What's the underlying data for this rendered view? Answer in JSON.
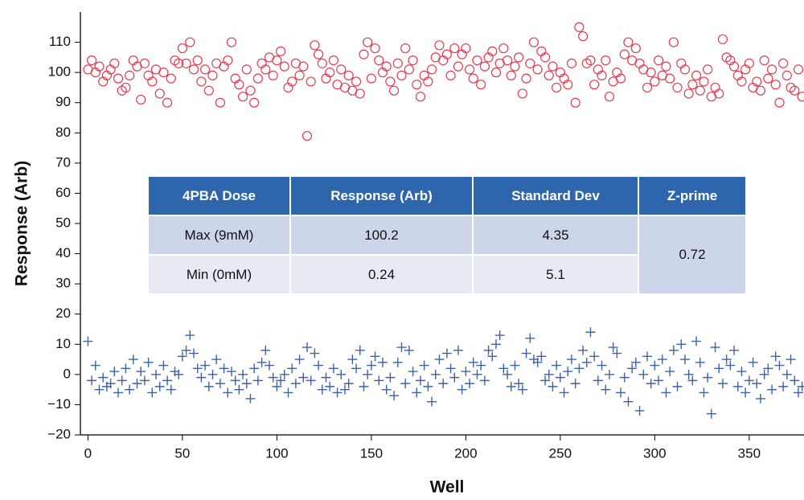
{
  "chart_data": {
    "type": "scatter",
    "xlabel": "Well",
    "ylabel": "Response (Arb)",
    "xlim": [
      -4,
      379
    ],
    "ylim": [
      -20,
      120
    ],
    "xticks": [
      0,
      50,
      100,
      150,
      200,
      250,
      300,
      350
    ],
    "yticks": [
      {
        "value": -20,
        "label": "−20"
      },
      {
        "value": -10,
        "label": "−10"
      },
      0,
      10,
      20,
      30,
      40,
      50,
      60,
      70,
      80,
      90,
      100,
      110
    ],
    "x": [
      0,
      2,
      4,
      6,
      8,
      10,
      12,
      14,
      16,
      18,
      20,
      22,
      24,
      26,
      28,
      30,
      32,
      34,
      36,
      38,
      40,
      42,
      44,
      46,
      48,
      50,
      52,
      54,
      56,
      58,
      60,
      62,
      64,
      66,
      68,
      70,
      72,
      74,
      76,
      78,
      80,
      82,
      84,
      86,
      88,
      90,
      92,
      94,
      96,
      98,
      100,
      102,
      104,
      106,
      108,
      110,
      112,
      114,
      116,
      118,
      120,
      122,
      124,
      126,
      128,
      130,
      132,
      134,
      136,
      138,
      140,
      142,
      144,
      146,
      148,
      150,
      152,
      154,
      156,
      158,
      160,
      162,
      164,
      166,
      168,
      170,
      172,
      174,
      176,
      178,
      180,
      182,
      184,
      186,
      188,
      190,
      192,
      194,
      196,
      198,
      200,
      202,
      204,
      206,
      208,
      210,
      212,
      214,
      216,
      218,
      220,
      222,
      224,
      226,
      228,
      230,
      232,
      234,
      236,
      238,
      240,
      242,
      244,
      246,
      248,
      250,
      252,
      254,
      256,
      258,
      260,
      262,
      264,
      266,
      268,
      270,
      272,
      274,
      276,
      278,
      280,
      282,
      284,
      286,
      288,
      290,
      292,
      294,
      296,
      298,
      300,
      302,
      304,
      306,
      308,
      310,
      312,
      314,
      316,
      318,
      320,
      322,
      324,
      326,
      328,
      330,
      332,
      334,
      336,
      338,
      340,
      342,
      344,
      346,
      348,
      350,
      352,
      354,
      356,
      358,
      360,
      362,
      364,
      366,
      368,
      370,
      372,
      374,
      376,
      378
    ],
    "series": [
      {
        "marker": "circle",
        "color": "#e8394d",
        "values": [
          101,
          104,
          100,
          102,
          97,
          99,
          101,
          103,
          98,
          94,
          95,
          99,
          104,
          102,
          91,
          103,
          99,
          97,
          101,
          93,
          100,
          90,
          98,
          104,
          103,
          108,
          103,
          110,
          101,
          104,
          97,
          101,
          94,
          99,
          103,
          90,
          102,
          104,
          110,
          98,
          96,
          92,
          101,
          94,
          90,
          98,
          103,
          101,
          105,
          99,
          104,
          107,
          102,
          95,
          97,
          103,
          99,
          102,
          79,
          97,
          109,
          106,
          103,
          98,
          100,
          104,
          96,
          101,
          95,
          99,
          94,
          97,
          93,
          106,
          110,
          98,
          108,
          104,
          100,
          102,
          97,
          94,
          103,
          99,
          108,
          101,
          104,
          96,
          92,
          99,
          97,
          101,
          105,
          109,
          104,
          106,
          99,
          108,
          102,
          106,
          108,
          101,
          98,
          104,
          96,
          102,
          105,
          107,
          100,
          103,
          108,
          104,
          99,
          102,
          105,
          93,
          98,
          103,
          110,
          101,
          107,
          105,
          99,
          102,
          95,
          100,
          98,
          96,
          103,
          90,
          115,
          112,
          103,
          104,
          96,
          101,
          99,
          104,
          92,
          97,
          100,
          98,
          106,
          110,
          104,
          108,
          103,
          101,
          95,
          100,
          97,
          104,
          99,
          102,
          98,
          110,
          95,
          103,
          101,
          93,
          96,
          99,
          94,
          97,
          101,
          92,
          95,
          93,
          111,
          105,
          104,
          102,
          99,
          97,
          101,
          103,
          95,
          97,
          94,
          104,
          98,
          101,
          96,
          90,
          103,
          99,
          95,
          94,
          101,
          92
        ]
      },
      {
        "marker": "plus",
        "color": "#3d62a9",
        "values": [
          11,
          -2,
          3,
          -5,
          -1,
          -4,
          -3,
          1,
          -6,
          -2,
          2,
          -5,
          5,
          -3,
          1,
          -2,
          4,
          -6,
          0,
          -4,
          3,
          -2,
          -5,
          1,
          0,
          6,
          8,
          13,
          7,
          2,
          -1,
          3,
          -4,
          0,
          5,
          -3,
          2,
          -6,
          1,
          -2,
          -5,
          0,
          -3,
          -8,
          2,
          -2,
          4,
          8,
          3,
          -1,
          -4,
          -2,
          0,
          -6,
          2,
          -3,
          5,
          -1,
          9,
          -2,
          7,
          3,
          -5,
          -1,
          -4,
          2,
          -6,
          0,
          -5,
          -3,
          5,
          2,
          8,
          -4,
          0,
          3,
          6,
          -2,
          4,
          -5,
          -1,
          -7,
          4,
          9,
          -3,
          8,
          1,
          -6,
          -2,
          3,
          -4,
          -9,
          0,
          5,
          -3,
          7,
          2,
          -1,
          8,
          -5,
          1,
          -3,
          4,
          0,
          3,
          -2,
          8,
          6,
          10,
          13,
          2,
          0,
          -4,
          3,
          -3,
          -5,
          7,
          12,
          5,
          4,
          6,
          -2,
          0,
          -4,
          3,
          -1,
          -6,
          1,
          5,
          -3,
          2,
          8,
          4,
          14,
          6,
          -2,
          3,
          -5,
          0,
          9,
          7,
          -6,
          -1,
          -9,
          2,
          4,
          -12,
          0,
          6,
          -3,
          3,
          -2,
          5,
          -6,
          1,
          8,
          -4,
          10,
          5,
          0,
          -2,
          11,
          4,
          -6,
          -1,
          -13,
          9,
          2,
          -3,
          5,
          3,
          8,
          -4,
          1,
          -6,
          -2,
          4,
          -3,
          -8,
          0,
          2,
          -5,
          6,
          3,
          -4,
          0,
          5,
          -2,
          -6,
          -4
        ]
      }
    ]
  },
  "table": {
    "headers": [
      "4PBA Dose",
      "Response (Arb)",
      "Standard Dev",
      "Z-prime"
    ],
    "rows": [
      [
        "Max (9mM)",
        100.2,
        4.35
      ],
      [
        "Min (0mM)",
        0.24,
        5.1
      ]
    ],
    "z_prime": 0.72
  }
}
